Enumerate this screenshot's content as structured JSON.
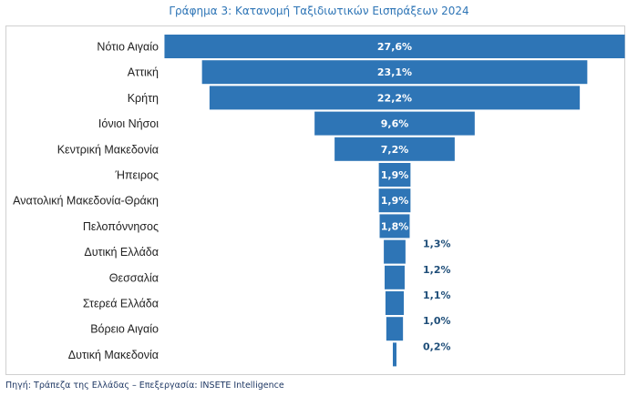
{
  "title": "Γράφημα 3: Κατανομή Ταξιδιωτικών Εισπράξεων 2024",
  "source": "Πηγή: Τράπεζα της Ελλάδας – Επεξεργασία: INSETE Intelligence",
  "colors": {
    "bar": "#2e75b6",
    "title": "#2e75b6",
    "outside_label": "#1f4e79"
  },
  "chart_data": {
    "type": "bar",
    "orientation": "horizontal-centered-funnel",
    "title": "Γράφημα 3: Κατανομή Ταξιδιωτικών Εισπράξεων 2024",
    "categories": [
      "Νότιο Αιγαίο",
      "Αττική",
      "Κρήτη",
      "Ιόνιοι Νήσοι",
      "Κεντρική Μακεδονία",
      "Ήπειρος",
      "Ανατολική Μακεδονία-Θράκη",
      "Πελοπόννησος",
      "Δυτική Ελλάδα",
      "Θεσσαλία",
      "Στερεά Ελλάδα",
      "Βόρειο Αιγαίο",
      "Δυτική Μακεδονία"
    ],
    "values": [
      27.6,
      23.1,
      22.2,
      9.6,
      7.2,
      1.9,
      1.9,
      1.8,
      1.3,
      1.2,
      1.1,
      1.0,
      0.2
    ],
    "labels": [
      "27,6%",
      "23,1%",
      "22,2%",
      "9,6%",
      "7,2%",
      "1,9%",
      "1,9%",
      "1,8%",
      "1,3%",
      "1,2%",
      "1,1%",
      "1,0%",
      "0,2%"
    ],
    "unit": "%",
    "grid": false,
    "legend": "none"
  }
}
